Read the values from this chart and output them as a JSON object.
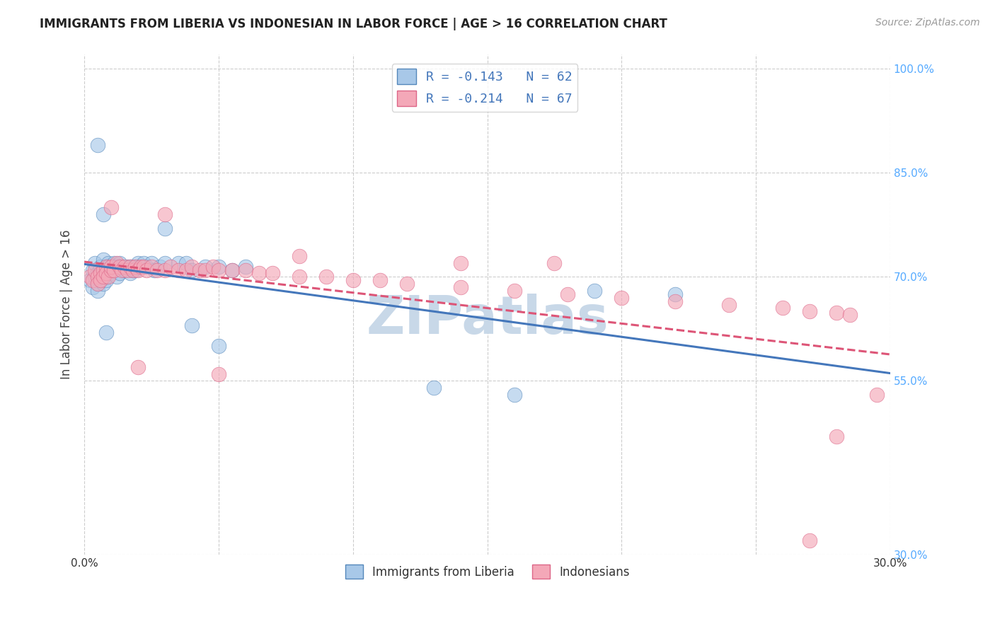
{
  "title": "IMMIGRANTS FROM LIBERIA VS INDONESIAN IN LABOR FORCE | AGE > 16 CORRELATION CHART",
  "source": "Source: ZipAtlas.com",
  "ylabel": "In Labor Force | Age > 16",
  "xlim": [
    0.0,
    0.3
  ],
  "ylim": [
    0.3,
    1.02
  ],
  "yticks_right": [
    0.3,
    0.55,
    0.7,
    0.85,
    1.0
  ],
  "ytick_labels_right": [
    "30.0%",
    "55.0%",
    "70.0%",
    "85.0%",
    "100.0%"
  ],
  "legend_label1": "R = -0.143   N = 62",
  "legend_label2": "R = -0.214   N = 67",
  "legend_bottom_label1": "Immigrants from Liberia",
  "legend_bottom_label2": "Indonesians",
  "n1": 62,
  "n2": 67,
  "blue_color": "#a8c8e8",
  "pink_color": "#f4a8b8",
  "blue_edge_color": "#5588bb",
  "pink_edge_color": "#dd6688",
  "blue_line_color": "#4477bb",
  "pink_line_color": "#dd5577",
  "watermark_color": "#c8d8e8",
  "background_color": "#ffffff",
  "grid_color": "#cccccc",
  "title_color": "#222222",
  "axis_label_color": "#444444",
  "right_tick_color": "#55aaff",
  "liberia_x": [
    0.002,
    0.003,
    0.003,
    0.004,
    0.004,
    0.005,
    0.005,
    0.005,
    0.006,
    0.006,
    0.006,
    0.007,
    0.007,
    0.007,
    0.008,
    0.008,
    0.008,
    0.009,
    0.009,
    0.009,
    0.01,
    0.01,
    0.011,
    0.011,
    0.012,
    0.012,
    0.013,
    0.013,
    0.014,
    0.015,
    0.015,
    0.016,
    0.017,
    0.017,
    0.018,
    0.018,
    0.019,
    0.02,
    0.02,
    0.022,
    0.023,
    0.025,
    0.026,
    0.028,
    0.03,
    0.035,
    0.038,
    0.04,
    0.045,
    0.05,
    0.055,
    0.06,
    0.005,
    0.13,
    0.16,
    0.007,
    0.03,
    0.04,
    0.008,
    0.05,
    0.19,
    0.22
  ],
  "liberia_y": [
    0.695,
    0.685,
    0.71,
    0.72,
    0.7,
    0.69,
    0.68,
    0.705,
    0.715,
    0.695,
    0.7,
    0.69,
    0.71,
    0.725,
    0.715,
    0.695,
    0.7,
    0.71,
    0.72,
    0.715,
    0.705,
    0.71,
    0.72,
    0.715,
    0.7,
    0.715,
    0.705,
    0.72,
    0.715,
    0.71,
    0.71,
    0.715,
    0.705,
    0.715,
    0.71,
    0.715,
    0.71,
    0.72,
    0.715,
    0.72,
    0.715,
    0.72,
    0.71,
    0.715,
    0.72,
    0.72,
    0.72,
    0.71,
    0.715,
    0.715,
    0.71,
    0.715,
    0.89,
    0.54,
    0.53,
    0.79,
    0.77,
    0.63,
    0.62,
    0.6,
    0.68,
    0.675
  ],
  "indonesian_x": [
    0.002,
    0.003,
    0.004,
    0.005,
    0.005,
    0.006,
    0.006,
    0.007,
    0.007,
    0.008,
    0.008,
    0.009,
    0.01,
    0.01,
    0.011,
    0.012,
    0.013,
    0.014,
    0.015,
    0.016,
    0.017,
    0.018,
    0.019,
    0.02,
    0.021,
    0.022,
    0.023,
    0.025,
    0.027,
    0.03,
    0.032,
    0.035,
    0.038,
    0.04,
    0.043,
    0.045,
    0.048,
    0.05,
    0.055,
    0.06,
    0.065,
    0.07,
    0.08,
    0.09,
    0.1,
    0.11,
    0.12,
    0.14,
    0.16,
    0.18,
    0.2,
    0.22,
    0.24,
    0.26,
    0.27,
    0.28,
    0.285,
    0.01,
    0.03,
    0.08,
    0.14,
    0.175,
    0.02,
    0.05,
    0.28,
    0.27,
    0.295
  ],
  "indonesian_y": [
    0.7,
    0.695,
    0.71,
    0.7,
    0.69,
    0.705,
    0.695,
    0.71,
    0.7,
    0.715,
    0.705,
    0.7,
    0.71,
    0.715,
    0.71,
    0.72,
    0.715,
    0.71,
    0.715,
    0.71,
    0.715,
    0.71,
    0.715,
    0.71,
    0.715,
    0.715,
    0.71,
    0.715,
    0.71,
    0.71,
    0.715,
    0.71,
    0.71,
    0.715,
    0.71,
    0.71,
    0.715,
    0.71,
    0.71,
    0.71,
    0.705,
    0.705,
    0.7,
    0.7,
    0.695,
    0.695,
    0.69,
    0.685,
    0.68,
    0.675,
    0.67,
    0.665,
    0.66,
    0.655,
    0.65,
    0.648,
    0.645,
    0.8,
    0.79,
    0.73,
    0.72,
    0.72,
    0.57,
    0.56,
    0.47,
    0.32,
    0.53
  ]
}
